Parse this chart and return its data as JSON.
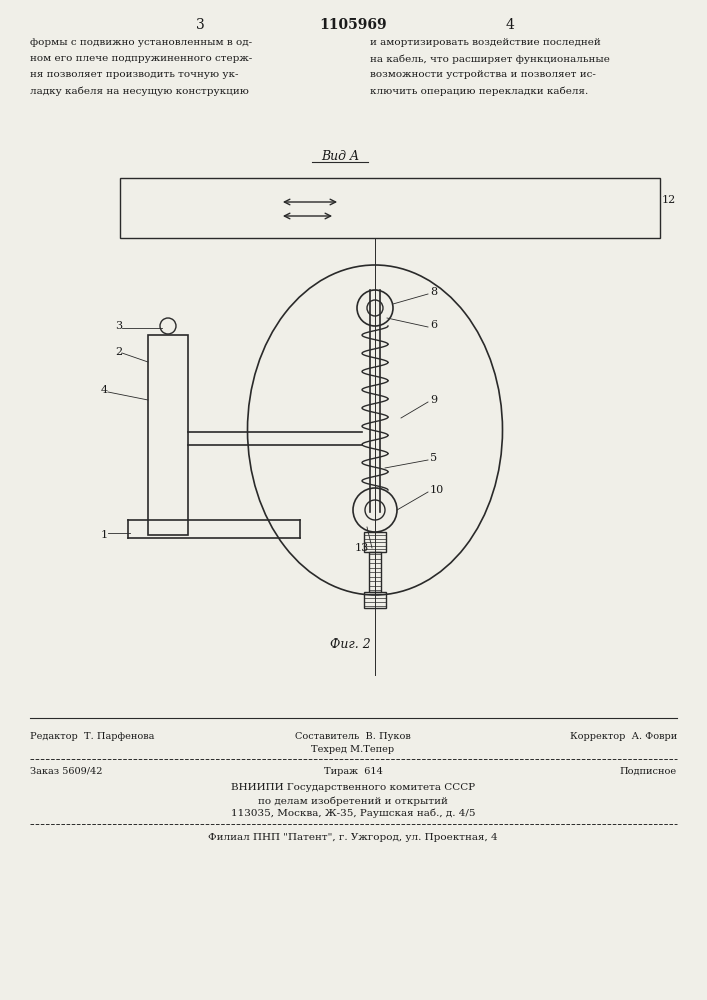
{
  "bg_color": "#f5f5f0",
  "page_color": "#f0efe8",
  "text_color": "#1a1a1a",
  "line_color": "#2a2a2a",
  "header_number": "1105969",
  "page_left": "3",
  "page_right": "4",
  "text_left": [
    "формы с подвижно установленным в од-",
    "ном его плече подпружиненного стерж-",
    "ня позволяет производить точную ук-",
    "ладку кабеля на несущую конструкцию"
  ],
  "text_right": [
    "и амортизировать воздействие последней",
    "на кабель, что расширяет функциональные",
    "возможности устройства и позволяет ис-",
    "ключить операцию перекладки кабеля."
  ],
  "vid_a_label": "Вид A",
  "fig_label": "Фиг. 2",
  "label_12": "12",
  "label_8": "8",
  "label_6": "6",
  "label_9": "9",
  "label_5": "5",
  "label_10": "10",
  "label_13": "13",
  "label_3": "3",
  "label_2": "2",
  "label_4": "4",
  "label_1": "1",
  "footer_editor": "Редактор  Т. Парфенова",
  "footer_compiler": "Составитель  В. Пуков",
  "footer_corrector": "Корректор  А. Фоври",
  "footer_techred": "Техред М.Тепер",
  "footer_order": "Заказ 5609/42",
  "footer_tirazh": "Тираж  614",
  "footer_podpisnoe": "Подписное",
  "footer_vniip1": "ВНИИПИ Государственного комитета СССР",
  "footer_vniip2": "по делам изобретений и открытий",
  "footer_vniip3": "113035, Москва, Ж-35, Раушская наб., д. 4/5",
  "footer_filial": "Филиал ПНП \"Патент\", г. Ужгород, ул. Проектная, 4"
}
